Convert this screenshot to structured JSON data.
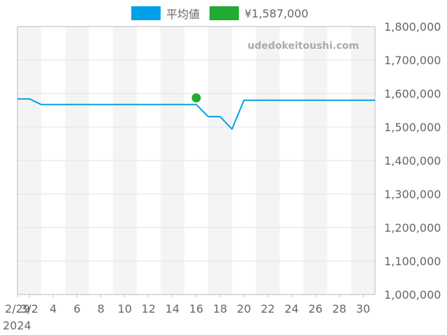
{
  "legend": {
    "avg_label": "平均値",
    "point_label": "¥1,587,000"
  },
  "watermark": "udedokeitoushi.com",
  "x_year": "2024",
  "colors": {
    "line": "#00a0e9",
    "point": "#22aa33",
    "band": "#f4f4f4",
    "grid": "#e2e2e2",
    "axis": "#bbbbbb"
  },
  "chart_data": {
    "type": "line",
    "x_ticks": [
      "2/29",
      "3/2",
      "4",
      "6",
      "8",
      "10",
      "12",
      "14",
      "16",
      "18",
      "20",
      "22",
      "24",
      "26",
      "28",
      "30"
    ],
    "y_ticks": [
      "1,000,000",
      "1,100,000",
      "1,200,000",
      "1,300,000",
      "1,400,000",
      "1,500,000",
      "1,600,000",
      "1,700,000",
      "1,800,000"
    ],
    "ylim": [
      1000000,
      1800000
    ],
    "xlim": [
      "2024-02-29",
      "2024-03-30"
    ],
    "series": [
      {
        "name": "平均値",
        "x": [
          "2024-02-29",
          "2024-03-01",
          "2024-03-02",
          "2024-03-15",
          "2024-03-16",
          "2024-03-17",
          "2024-03-18",
          "2024-03-19",
          "2024-03-30"
        ],
        "y": [
          1584000,
          1584000,
          1567000,
          1567000,
          1531000,
          1531000,
          1494000,
          1580000,
          1580000
        ]
      },
      {
        "name": "¥1,587,000",
        "type": "scatter",
        "x": [
          "2024-03-15"
        ],
        "y": [
          1587000
        ]
      }
    ]
  }
}
